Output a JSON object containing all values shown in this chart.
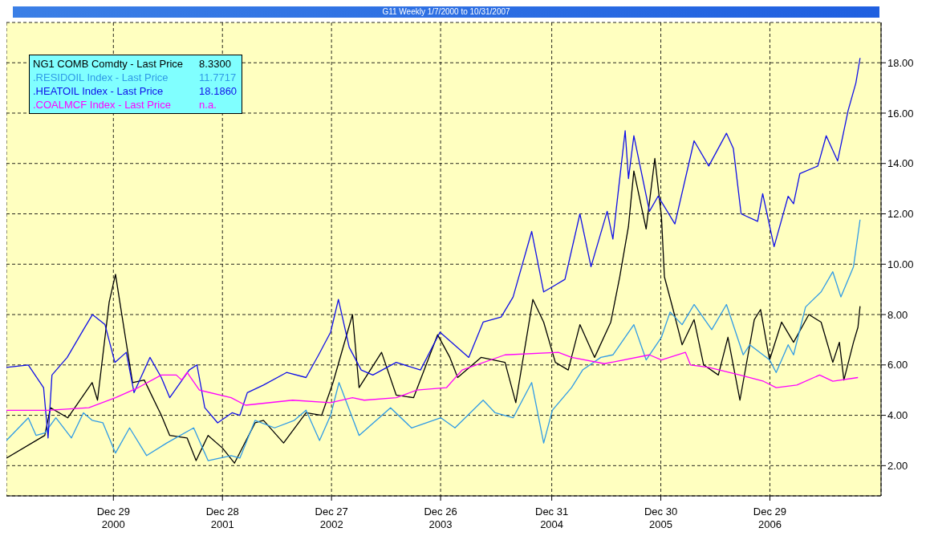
{
  "chart_data": {
    "type": "line",
    "title": "G11 Weekly 1/7/2000 to 10/31/2007",
    "xlim": [
      "2000-01-07",
      "2008-01-04"
    ],
    "xticks": [
      {
        "value": "2000-12-29",
        "label": "Dec 29 2000"
      },
      {
        "value": "2001-12-28",
        "label": "Dec 28 2001"
      },
      {
        "value": "2002-12-27",
        "label": "Dec 27 2002"
      },
      {
        "value": "2003-12-26",
        "label": "Dec 26 2003"
      },
      {
        "value": "2004-12-31",
        "label": "Dec 31 2004"
      },
      {
        "value": "2005-12-30",
        "label": "Dec 30 2005"
      },
      {
        "value": "2006-12-29",
        "label": "Dec 29 2006"
      }
    ],
    "ylim": [
      0.8,
      19.6
    ],
    "yticks": [
      {
        "value": 2,
        "label": "2.00"
      },
      {
        "value": 4,
        "label": "4.00"
      },
      {
        "value": 6,
        "label": "6.00"
      },
      {
        "value": 8,
        "label": "8.00"
      },
      {
        "value": 10,
        "label": "10.00"
      },
      {
        "value": 12,
        "label": "12.00"
      },
      {
        "value": 14,
        "label": "14.00"
      },
      {
        "value": 16,
        "label": "16.00"
      },
      {
        "value": 18,
        "label": "18.00"
      }
    ],
    "grid": true,
    "legend": "top left",
    "annotations": [
      "8.3300",
      "11.7717",
      "18.1860",
      "n.a."
    ],
    "series": [
      {
        "name": "NG1 COMB Comdty - Last Price",
        "color": "#000000",
        "x": [
          "2000-01-07",
          "2000-05-14",
          "2000-06-02",
          "2000-07-30",
          "2000-10-19",
          "2000-11-06",
          "2000-12-15",
          "2001-01-05",
          "2001-02-03",
          "2001-03-03",
          "2001-04-11",
          "2001-06-07",
          "2001-07-05",
          "2001-09-01",
          "2001-10-01",
          "2001-11-10",
          "2001-12-28",
          "2002-02-06",
          "2002-04-16",
          "2002-05-14",
          "2002-07-20",
          "2002-10-03",
          "2002-11-24",
          "2003-01-01",
          "2003-03-07",
          "2003-03-29",
          "2003-06-12",
          "2003-07-31",
          "2003-09-27",
          "2003-12-16",
          "2004-01-26",
          "2004-02-21",
          "2004-05-09",
          "2004-07-28",
          "2004-09-02",
          "2004-10-29",
          "2004-12-04",
          "2005-01-12",
          "2005-02-24",
          "2005-04-04",
          "2005-05-23",
          "2005-07-16",
          "2005-08-15",
          "2005-09-13",
          "2005-10-01",
          "2005-11-11",
          "2005-12-10",
          "2006-01-01",
          "2006-01-11",
          "2006-02-09",
          "2006-03-11",
          "2006-04-20",
          "2006-05-22",
          "2006-07-10",
          "2006-08-11",
          "2006-09-20",
          "2006-11-07",
          "2006-11-28",
          "2006-12-28",
          "2007-02-06",
          "2007-03-18",
          "2007-05-08",
          "2007-06-18",
          "2007-07-27",
          "2007-08-18",
          "2007-09-02",
          "2007-10-04",
          "2007-10-19",
          "2007-10-26"
        ],
        "values": [
          2.3,
          3.2,
          4.3,
          3.9,
          5.3,
          4.6,
          8.5,
          9.6,
          7.4,
          5.3,
          5.4,
          4.0,
          3.2,
          3.1,
          2.2,
          3.2,
          2.7,
          2.1,
          3.7,
          3.8,
          2.9,
          4.1,
          4.0,
          5.3,
          8.0,
          5.1,
          6.5,
          4.8,
          4.7,
          7.2,
          6.3,
          5.5,
          6.3,
          6.1,
          4.5,
          8.6,
          7.7,
          6.1,
          5.8,
          7.6,
          6.3,
          7.7,
          9.5,
          11.5,
          13.7,
          11.4,
          14.2,
          11.9,
          9.5,
          8.2,
          6.8,
          7.8,
          6.0,
          5.6,
          7.1,
          4.6,
          7.8,
          8.2,
          6.2,
          7.7,
          6.9,
          8.0,
          7.7,
          6.1,
          6.9,
          5.4,
          6.9,
          7.5,
          8.33
        ]
      },
      {
        "name": ".RESIDOIL Index - Last Price",
        "color": "#2f9be6",
        "x": [
          "2000-01-07",
          "2000-03-20",
          "2000-04-15",
          "2000-05-14",
          "2000-06-20",
          "2000-08-11",
          "2000-09-20",
          "2000-10-19",
          "2000-11-24",
          "2001-01-05",
          "2001-02-21",
          "2001-04-19",
          "2001-06-25",
          "2001-09-23",
          "2001-11-10",
          "2002-01-26",
          "2002-02-24",
          "2002-04-16",
          "2002-06-20",
          "2002-08-25",
          "2002-10-03",
          "2002-11-17",
          "2002-12-24",
          "2003-01-21",
          "2003-03-29",
          "2003-07-12",
          "2003-09-20",
          "2003-12-27",
          "2004-02-12",
          "2004-05-16",
          "2004-06-25",
          "2004-08-24",
          "2004-10-25",
          "2004-12-04",
          "2005-01-02",
          "2005-03-07",
          "2005-04-13",
          "2005-06-13",
          "2005-07-23",
          "2005-10-01",
          "2005-11-11",
          "2006-01-01",
          "2006-01-30",
          "2006-03-11",
          "2006-04-20",
          "2006-06-18",
          "2006-08-06",
          "2006-10-01",
          "2006-10-23",
          "2006-12-28",
          "2007-01-19",
          "2007-02-28",
          "2007-03-18",
          "2007-04-27",
          "2007-06-18",
          "2007-07-27",
          "2007-08-23",
          "2007-10-04",
          "2007-10-26"
        ],
        "values": [
          3.0,
          3.9,
          3.2,
          3.3,
          3.9,
          3.1,
          4.1,
          3.8,
          3.7,
          2.5,
          3.5,
          2.4,
          2.9,
          3.5,
          2.2,
          2.4,
          2.3,
          3.8,
          3.5,
          3.8,
          4.2,
          3.0,
          4.0,
          5.3,
          3.2,
          4.3,
          3.5,
          3.9,
          3.5,
          4.6,
          4.1,
          3.9,
          5.3,
          2.9,
          4.2,
          5.1,
          5.8,
          6.3,
          6.4,
          7.6,
          6.2,
          7.1,
          8.1,
          7.6,
          8.4,
          7.4,
          8.4,
          6.4,
          6.8,
          6.2,
          5.7,
          6.8,
          6.4,
          8.3,
          8.9,
          9.7,
          8.7,
          9.9,
          11.77
        ]
      },
      {
        "name": ".HEATOIL Index - Last Price",
        "color": "#1010e8",
        "x": [
          "2000-01-07",
          "2000-03-20",
          "2000-05-10",
          "2000-05-25",
          "2000-06-07",
          "2000-07-28",
          "2000-09-20",
          "2000-10-20",
          "2000-12-01",
          "2001-01-03",
          "2001-02-10",
          "2001-03-08",
          "2001-04-30",
          "2001-06-07",
          "2001-07-05",
          "2001-09-08",
          "2001-10-04",
          "2001-10-30",
          "2001-12-12",
          "2002-01-29",
          "2002-02-24",
          "2002-03-21",
          "2002-05-14",
          "2002-07-30",
          "2002-10-03",
          "2002-11-14",
          "2002-12-24",
          "2003-01-19",
          "2003-02-24",
          "2003-04-05",
          "2003-05-14",
          "2003-07-31",
          "2003-10-20",
          "2003-12-24",
          "2004-03-29",
          "2004-05-16",
          "2004-07-15",
          "2004-08-24",
          "2004-10-25",
          "2004-12-04",
          "2005-01-02",
          "2005-02-13",
          "2005-04-04",
          "2005-05-11",
          "2005-07-04",
          "2005-07-23",
          "2005-09-02",
          "2005-09-13",
          "2005-10-01",
          "2005-11-22",
          "2005-12-21",
          "2006-02-15",
          "2006-04-20",
          "2006-06-08",
          "2006-08-06",
          "2006-08-29",
          "2006-09-24",
          "2006-11-18",
          "2006-12-05",
          "2007-01-12",
          "2007-02-28",
          "2007-03-18",
          "2007-04-08",
          "2007-06-07",
          "2007-07-05",
          "2007-08-12",
          "2007-09-16",
          "2007-10-12",
          "2007-10-26"
        ],
        "values": [
          5.9,
          6.0,
          5.1,
          3.1,
          5.6,
          6.3,
          7.4,
          8.0,
          7.6,
          6.1,
          6.5,
          4.9,
          6.3,
          5.5,
          4.7,
          5.8,
          6.0,
          4.3,
          3.7,
          4.1,
          4.0,
          4.9,
          5.2,
          5.7,
          5.5,
          6.4,
          7.3,
          8.6,
          6.7,
          5.8,
          5.6,
          6.1,
          5.8,
          7.3,
          6.3,
          7.7,
          7.9,
          8.7,
          11.3,
          8.9,
          9.1,
          9.4,
          12.0,
          9.9,
          12.1,
          11.0,
          15.3,
          13.4,
          15.1,
          12.1,
          12.7,
          11.6,
          14.9,
          13.9,
          15.2,
          14.6,
          12.0,
          11.7,
          12.8,
          10.7,
          12.7,
          12.4,
          13.6,
          13.9,
          15.1,
          14.1,
          16.1,
          17.2,
          18.19
        ]
      },
      {
        "name": ".COALMCF Index - Last Price",
        "color": "#ff00ff",
        "x": [
          "2000-01-07",
          "2000-05-24",
          "2000-10-08",
          "2001-01-05",
          "2001-03-22",
          "2001-06-07",
          "2001-07-27",
          "2001-08-14",
          "2001-09-01",
          "2001-10-12",
          "2002-01-26",
          "2002-03-15",
          "2002-08-19",
          "2002-12-24",
          "2003-03-07",
          "2003-04-15",
          "2003-07-31",
          "2003-10-08",
          "2004-01-15",
          "2004-03-07",
          "2004-07-28",
          "2005-01-22",
          "2005-03-07",
          "2005-06-25",
          "2005-11-22",
          "2006-01-01",
          "2006-03-22",
          "2006-04-08",
          "2006-06-08",
          "2006-09-20",
          "2006-12-08",
          "2007-01-19",
          "2007-03-29",
          "2007-06-13",
          "2007-07-27",
          "2007-10-19"
        ],
        "values": [
          4.2,
          4.2,
          4.3,
          4.7,
          5.1,
          5.6,
          5.6,
          5.4,
          5.7,
          5.0,
          4.7,
          4.4,
          4.6,
          4.5,
          4.7,
          4.6,
          4.7,
          5.0,
          5.1,
          5.8,
          6.4,
          6.5,
          6.3,
          6.05,
          6.4,
          6.2,
          6.5,
          6.0,
          5.9,
          5.6,
          5.35,
          5.1,
          5.2,
          5.6,
          5.35,
          5.5
        ]
      }
    ]
  }
}
